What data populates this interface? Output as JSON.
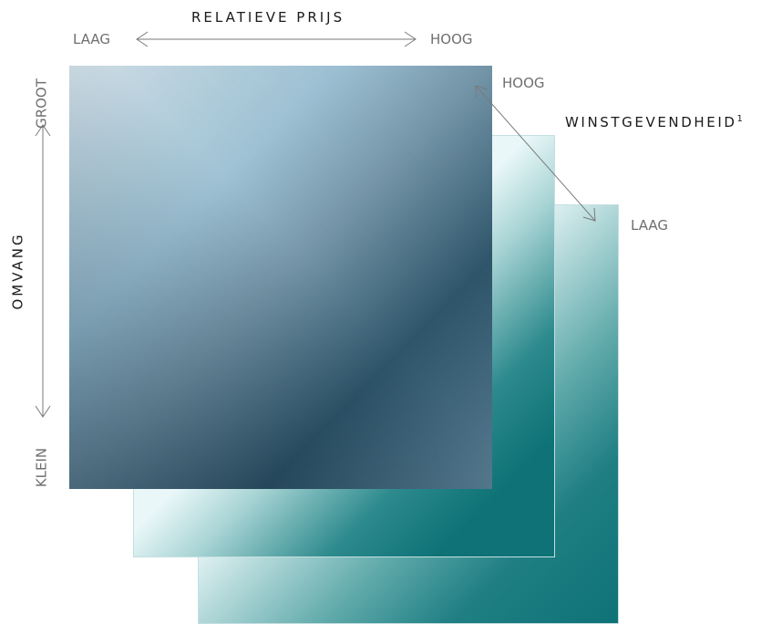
{
  "price_axis": {
    "title": "RELATIEVE PRIJS",
    "low": "LAAG",
    "high": "HOOG"
  },
  "size_axis": {
    "title": "OMVANG",
    "high": "GROOT",
    "low": "KLEIN"
  },
  "profit_axis": {
    "title": "WINSTGEVENDHEID",
    "footnote_marker": "1",
    "high": "HOOG",
    "low": "LAAG"
  },
  "colors": {
    "front_dark": "#2e556a",
    "front_light": "#cfdde5",
    "teal": "#0e7276",
    "mint": "#e9f7f8",
    "arrow_gray": "#7a7a7a"
  }
}
